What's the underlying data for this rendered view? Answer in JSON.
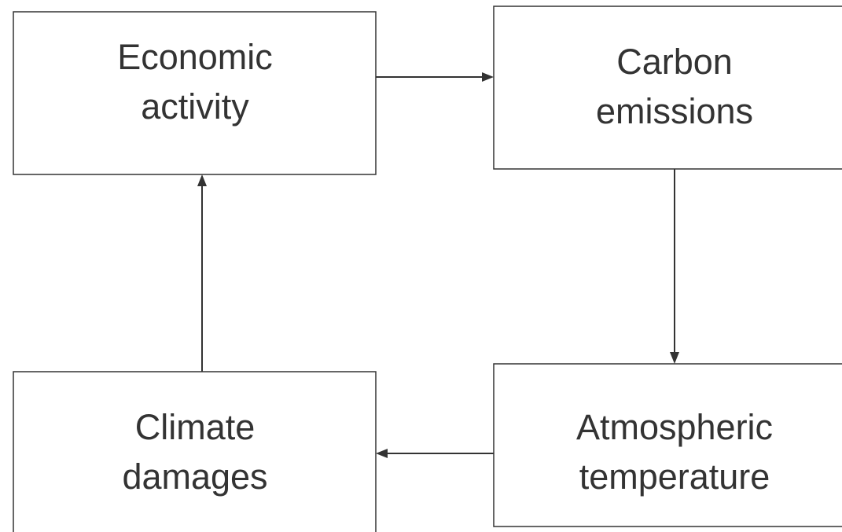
{
  "nodes": [
    {
      "lines": [
        "Economic",
        "activity"
      ]
    },
    {
      "lines": [
        "Carbon",
        "emissions"
      ]
    },
    {
      "lines": [
        "Atmospheric",
        "temperature"
      ]
    },
    {
      "lines": [
        "Climate",
        "damages"
      ]
    }
  ]
}
